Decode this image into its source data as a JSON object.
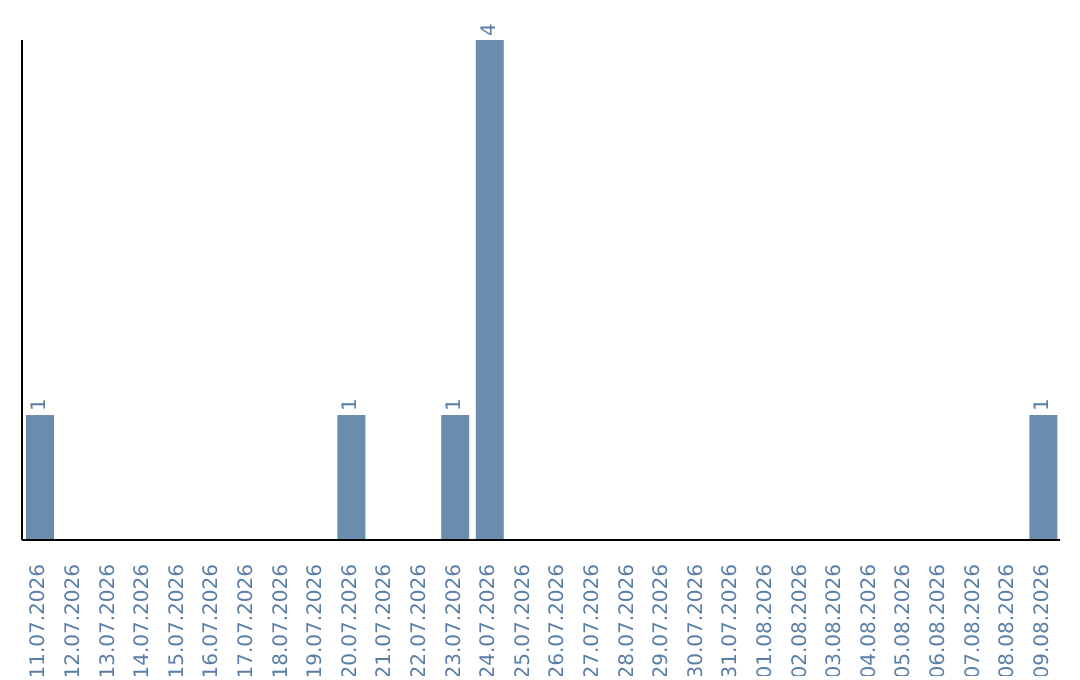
{
  "chart_data": {
    "type": "bar",
    "categories": [
      "11.07.2026",
      "12.07.2026",
      "13.07.2026",
      "14.07.2026",
      "15.07.2026",
      "16.07.2026",
      "17.07.2026",
      "18.07.2026",
      "19.07.2026",
      "20.07.2026",
      "21.07.2026",
      "22.07.2026",
      "23.07.2026",
      "24.07.2026",
      "25.07.2026",
      "26.07.2026",
      "27.07.2026",
      "28.07.2026",
      "29.07.2026",
      "30.07.2026",
      "31.07.2026",
      "01.08.2026",
      "02.08.2026",
      "03.08.2026",
      "04.08.2026",
      "05.08.2026",
      "06.08.2026",
      "07.08.2026",
      "08.08.2026",
      "09.08.2026"
    ],
    "values": [
      1,
      0,
      0,
      0,
      0,
      0,
      0,
      0,
      0,
      1,
      0,
      0,
      1,
      4,
      0,
      0,
      0,
      0,
      0,
      0,
      0,
      0,
      0,
      0,
      0,
      0,
      0,
      0,
      0,
      1
    ],
    "value_labels": [
      "1",
      null,
      null,
      null,
      null,
      null,
      null,
      null,
      null,
      "1",
      null,
      null,
      "1",
      "4",
      null,
      null,
      null,
      null,
      null,
      null,
      null,
      null,
      null,
      null,
      null,
      null,
      null,
      null,
      null,
      "1"
    ],
    "color": "#6a8cad",
    "grid": false,
    "legend": false
  }
}
